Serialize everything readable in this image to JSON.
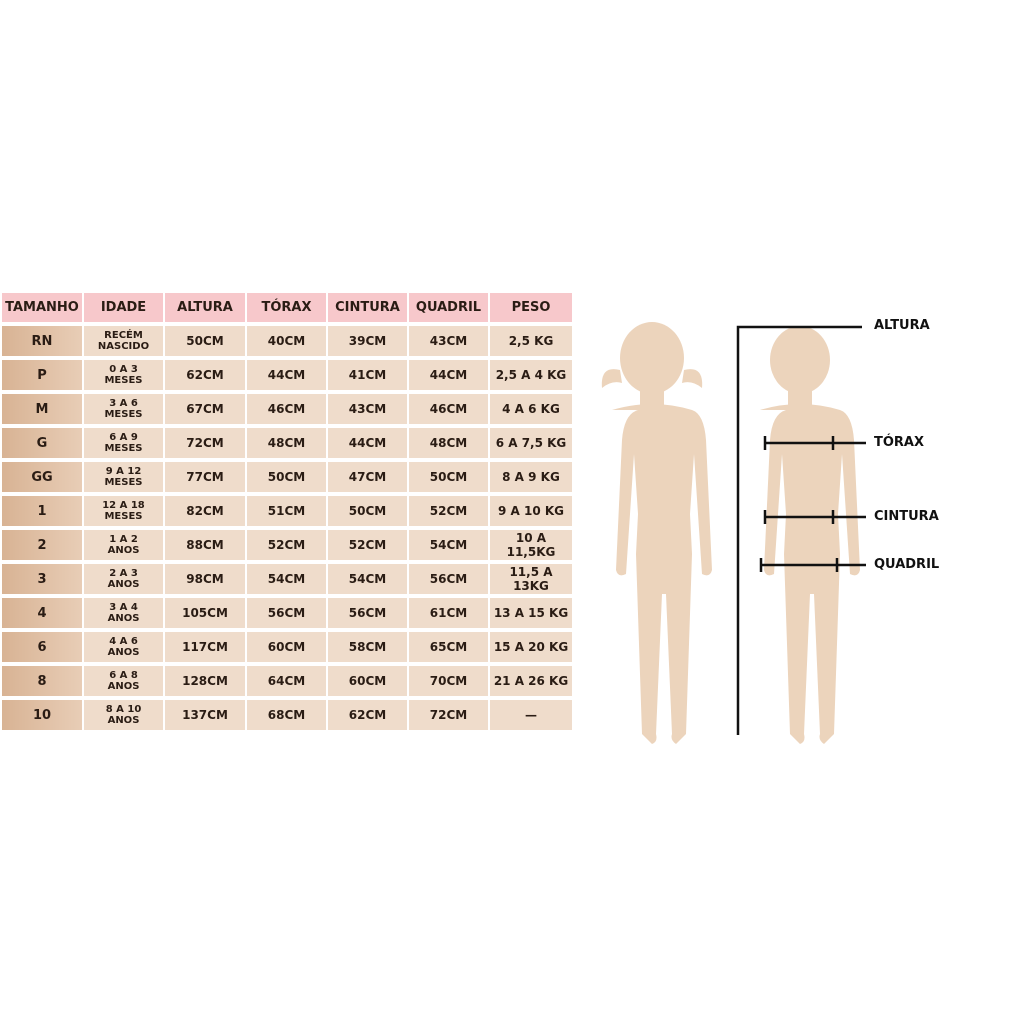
{
  "table": {
    "headers": [
      "TAMANHO",
      "IDADE",
      "ALTURA",
      "TÓRAX",
      "CINTURA",
      "QUADRIL",
      "PESO"
    ],
    "rows": [
      [
        "RN",
        "RECÉM\nNASCIDO",
        "50CM",
        "40CM",
        "39CM",
        "43CM",
        "2,5 KG"
      ],
      [
        "P",
        "0 A 3\nMESES",
        "62CM",
        "44CM",
        "41CM",
        "44CM",
        "2,5 A 4 KG"
      ],
      [
        "M",
        "3 A 6\nMESES",
        "67CM",
        "46CM",
        "43CM",
        "46CM",
        "4 A 6 KG"
      ],
      [
        "G",
        "6 A 9\nMESES",
        "72CM",
        "48CM",
        "44CM",
        "48CM",
        "6 A 7,5 KG"
      ],
      [
        "GG",
        "9 A 12\nMESES",
        "77CM",
        "50CM",
        "47CM",
        "50CM",
        "8 A 9 KG"
      ],
      [
        "1",
        "12 A 18\nMESES",
        "82CM",
        "51CM",
        "50CM",
        "52CM",
        "9 A 10 KG"
      ],
      [
        "2",
        "1 A 2\nANOS",
        "88CM",
        "52CM",
        "52CM",
        "54CM",
        "10 A 11,5KG"
      ],
      [
        "3",
        "2 A 3\nANOS",
        "98CM",
        "54CM",
        "54CM",
        "56CM",
        "11,5 A 13KG"
      ],
      [
        "4",
        "3 A 4\nANOS",
        "105CM",
        "56CM",
        "56CM",
        "61CM",
        "13 A 15 KG"
      ],
      [
        "6",
        "4 A 6\nANOS",
        "117CM",
        "60CM",
        "58CM",
        "65CM",
        "15 A 20 KG"
      ],
      [
        "8",
        "6 A 8\nANOS",
        "128CM",
        "64CM",
        "60CM",
        "70CM",
        "21 A 26 KG"
      ],
      [
        "10",
        "8 A 10\nANOS",
        "137CM",
        "68CM",
        "62CM",
        "72CM",
        "—"
      ]
    ]
  },
  "figure": {
    "labels": {
      "height": "ALTURA",
      "chest": "TÓRAX",
      "waist": "CINTURA",
      "hip": "QUADRIL"
    }
  },
  "colors": {
    "header": "#f7c8cb",
    "size_cell": "#d8b394",
    "cell": "#efdccb",
    "silhouette": "#ecd4bc"
  }
}
